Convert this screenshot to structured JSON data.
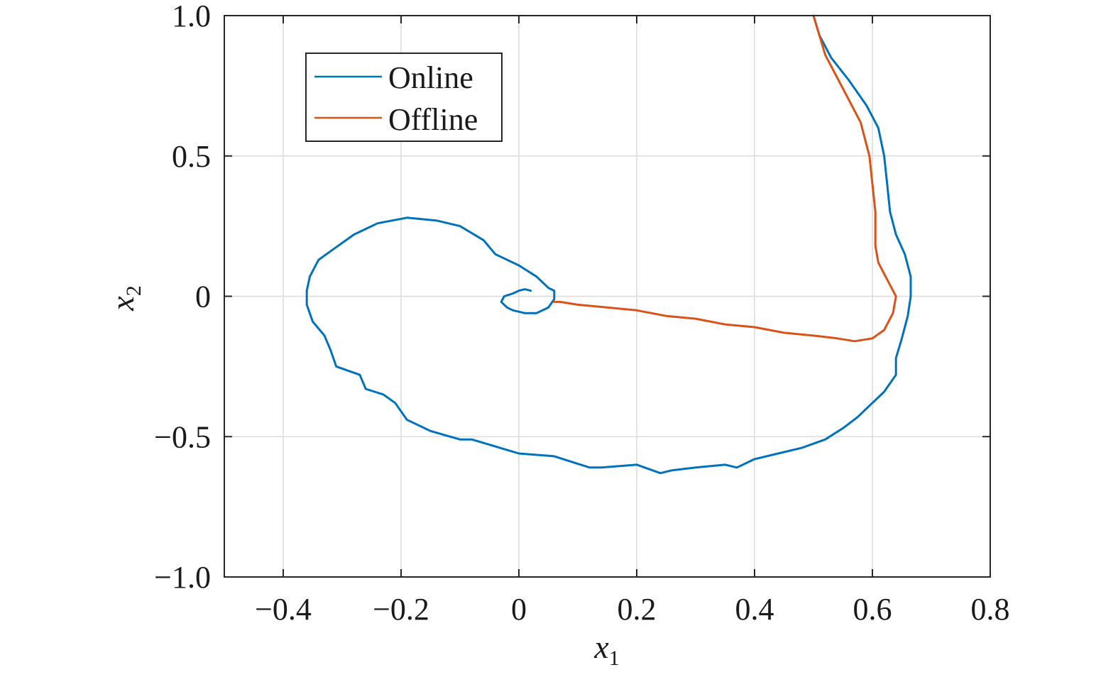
{
  "chart_data": {
    "type": "line",
    "xlabel": {
      "base": "x",
      "sub": "1"
    },
    "ylabel": {
      "base": "x",
      "sub": "2"
    },
    "xlim": [
      -0.5,
      0.8
    ],
    "ylim": [
      -1.0,
      1.0
    ],
    "xticks": [
      -0.4,
      -0.2,
      0,
      0.2,
      0.4,
      0.6,
      0.8
    ],
    "xtick_labels": [
      "−0.4",
      "−0.2",
      "0",
      "0.2",
      "0.4",
      "0.6",
      "0.8"
    ],
    "yticks": [
      1.0,
      0.5,
      0,
      -0.5,
      -1.0
    ],
    "ytick_labels": [
      "1.0",
      "0.5",
      "0",
      "−0.5",
      "−1.0"
    ],
    "grid": true,
    "legend_position": "top-left",
    "series": [
      {
        "name": "Online",
        "color": "#0072BD",
        "x": [
          0.5,
          0.51,
          0.53,
          0.56,
          0.59,
          0.61,
          0.62,
          0.625,
          0.63,
          0.64,
          0.655,
          0.665,
          0.665,
          0.66,
          0.65,
          0.64,
          0.64,
          0.64,
          0.62,
          0.59,
          0.575,
          0.55,
          0.52,
          0.48,
          0.44,
          0.4,
          0.37,
          0.35,
          0.3,
          0.26,
          0.24,
          0.2,
          0.14,
          0.12,
          0.06,
          0.0,
          -0.08,
          -0.1,
          -0.15,
          -0.19,
          -0.21,
          -0.23,
          -0.26,
          -0.27,
          -0.31,
          -0.32,
          -0.33,
          -0.35,
          -0.36,
          -0.36,
          -0.355,
          -0.35,
          -0.34,
          -0.32,
          -0.28,
          -0.24,
          -0.19,
          -0.14,
          -0.1,
          -0.06,
          -0.04,
          0.0,
          0.03,
          0.05,
          0.06,
          0.06,
          0.05,
          0.03,
          0.01,
          -0.01,
          -0.02,
          -0.03,
          -0.025,
          -0.01,
          0.0,
          0.01,
          0.02
        ],
        "y": [
          1.0,
          0.93,
          0.85,
          0.77,
          0.68,
          0.6,
          0.5,
          0.4,
          0.3,
          0.22,
          0.15,
          0.07,
          0.0,
          -0.07,
          -0.15,
          -0.22,
          -0.25,
          -0.28,
          -0.34,
          -0.4,
          -0.43,
          -0.47,
          -0.51,
          -0.54,
          -0.56,
          -0.58,
          -0.61,
          -0.6,
          -0.61,
          -0.62,
          -0.63,
          -0.6,
          -0.61,
          -0.61,
          -0.57,
          -0.56,
          -0.51,
          -0.51,
          -0.48,
          -0.44,
          -0.38,
          -0.35,
          -0.33,
          -0.28,
          -0.25,
          -0.19,
          -0.14,
          -0.09,
          -0.03,
          0.02,
          0.07,
          0.09,
          0.13,
          0.16,
          0.22,
          0.26,
          0.28,
          0.27,
          0.25,
          0.2,
          0.15,
          0.11,
          0.07,
          0.03,
          0.02,
          -0.01,
          -0.04,
          -0.06,
          -0.06,
          -0.05,
          -0.04,
          -0.02,
          0.0,
          0.01,
          0.02,
          0.025,
          0.02
        ]
      },
      {
        "name": "Offline",
        "color": "#D95319",
        "x": [
          0.5,
          0.51,
          0.52,
          0.54,
          0.56,
          0.58,
          0.595,
          0.6,
          0.605,
          0.605,
          0.61,
          0.62,
          0.63,
          0.64,
          0.635,
          0.62,
          0.6,
          0.57,
          0.54,
          0.5,
          0.45,
          0.4,
          0.35,
          0.3,
          0.25,
          0.2,
          0.15,
          0.1,
          0.07,
          0.06
        ],
        "y": [
          1.0,
          0.93,
          0.86,
          0.78,
          0.7,
          0.62,
          0.5,
          0.4,
          0.3,
          0.18,
          0.12,
          0.08,
          0.04,
          0.0,
          -0.06,
          -0.12,
          -0.15,
          -0.16,
          -0.15,
          -0.14,
          -0.13,
          -0.11,
          -0.1,
          -0.08,
          -0.07,
          -0.05,
          -0.04,
          -0.03,
          -0.02,
          -0.02
        ]
      }
    ]
  }
}
